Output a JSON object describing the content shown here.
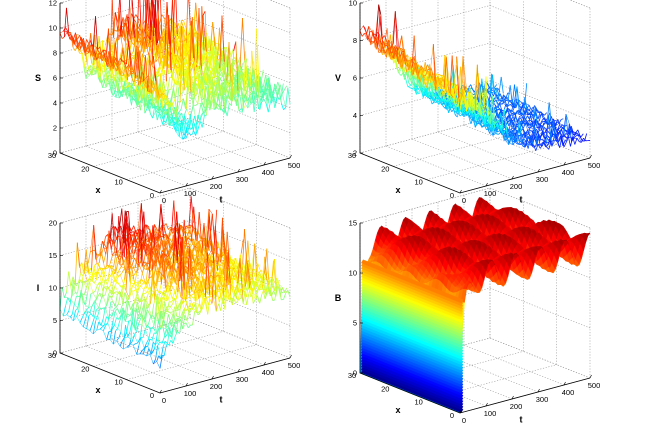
{
  "chart_data": [
    {
      "type": "surface-mesh",
      "zlabel": "S",
      "xlabel": "x",
      "ylabel": "t",
      "xlim": [
        0,
        30
      ],
      "ylim": [
        0,
        500
      ],
      "zlim": [
        0,
        12
      ],
      "xticks": [
        "0",
        "10",
        "20",
        "30"
      ],
      "yticks": [
        "0",
        "100",
        "200",
        "300",
        "400",
        "500"
      ],
      "zticks": [
        "0",
        "2",
        "4",
        "6",
        "8",
        "10",
        "12"
      ],
      "colormap": "jet",
      "profile": {
        "t": [
          0,
          50,
          100,
          150,
          200,
          300,
          400,
          500
        ],
        "min": [
          6,
          4.5,
          2,
          1.5,
          1.5,
          1.5,
          1.5,
          1.5
        ],
        "max": [
          10.5,
          9.5,
          6.5,
          7,
          10.5,
          9.5,
          9,
          8
        ]
      }
    },
    {
      "type": "surface-mesh",
      "zlabel": "V",
      "xlabel": "x",
      "ylabel": "t",
      "xlim": [
        0,
        30
      ],
      "ylim": [
        0,
        500
      ],
      "zlim": [
        2,
        10
      ],
      "xticks": [
        "0",
        "10",
        "20",
        "30"
      ],
      "yticks": [
        "0",
        "100",
        "200",
        "300",
        "400",
        "500"
      ],
      "zticks": [
        "2",
        "4",
        "6",
        "8",
        "10"
      ],
      "colormap": "jet",
      "profile": {
        "t": [
          0,
          50,
          100,
          150,
          200,
          300,
          400,
          500
        ],
        "min": [
          5,
          4.8,
          4.5,
          4,
          3,
          2.3,
          2.2,
          2.2
        ],
        "max": [
          9,
          8.5,
          7.5,
          6.2,
          5,
          4.5,
          4.2,
          4
        ]
      }
    },
    {
      "type": "surface-mesh",
      "zlabel": "I",
      "xlabel": "x",
      "ylabel": "t",
      "xlim": [
        0,
        30
      ],
      "ylim": [
        0,
        500
      ],
      "zlim": [
        0,
        20
      ],
      "xticks": [
        "0",
        "10",
        "20",
        "30"
      ],
      "yticks": [
        "0",
        "100",
        "200",
        "300",
        "400",
        "500"
      ],
      "zticks": [
        "0",
        "5",
        "10",
        "15",
        "20"
      ],
      "colormap": "jet",
      "profile": {
        "t": [
          0,
          50,
          100,
          150,
          200,
          300,
          400,
          500
        ],
        "min": [
          2,
          4,
          5,
          6,
          6,
          6,
          6,
          6
        ],
        "max": [
          7,
          12,
          14,
          16,
          18,
          17,
          16,
          15
        ]
      }
    },
    {
      "type": "surface",
      "zlabel": "B",
      "xlabel": "x",
      "ylabel": "t",
      "xlim": [
        0,
        30
      ],
      "ylim": [
        0,
        500
      ],
      "zlim": [
        0,
        15
      ],
      "xticks": [
        "20",
        "10",
        "0",
        "30"
      ],
      "yticks": [
        "0",
        "100",
        "200",
        "300",
        "400",
        "500"
      ],
      "zticks": [
        "0",
        "5",
        "10",
        "15"
      ],
      "colormap": "jet",
      "profile": {
        "t": [
          0,
          10,
          30,
          60,
          100,
          200,
          300,
          400,
          500
        ],
        "min": [
          0,
          9,
          11,
          11.5,
          11.5,
          11.5,
          11.5,
          11.5,
          11.5
        ],
        "max": [
          0,
          10,
          13,
          14,
          14.5,
          14.5,
          14.5,
          14.5,
          14.5
        ]
      }
    }
  ]
}
